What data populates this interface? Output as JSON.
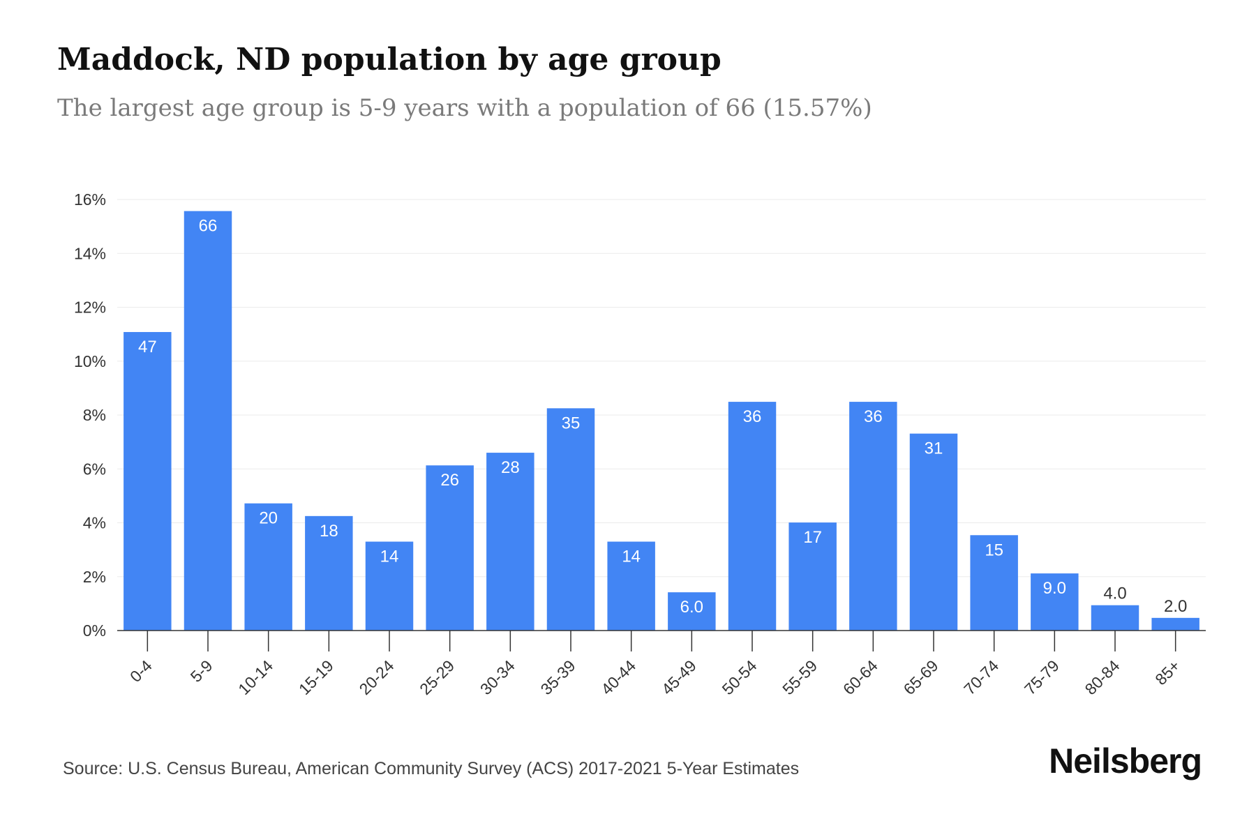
{
  "header": {
    "title": "Maddock, ND population by age group",
    "subtitle": "The largest age group is 5-9 years with a population of 66 (15.57%)"
  },
  "footer": {
    "source": "Source: U.S. Census Bureau, American Community Survey (ACS) 2017-2021 5-Year Estimates",
    "brand": "Neilsberg"
  },
  "colors": {
    "bar": "#4285f4",
    "grid": "#ebebeb",
    "axis": "#333333",
    "label_inside": "#ffffff",
    "label_outside": "#333333"
  },
  "chart_data": {
    "type": "bar",
    "title": "Maddock, ND population by age group",
    "subtitle": "The largest age group is 5-9 years with a population of 66 (15.57%)",
    "xlabel": "",
    "ylabel": "",
    "ylim": [
      0,
      16
    ],
    "yticks": [
      0,
      2,
      4,
      6,
      8,
      10,
      12,
      14,
      16
    ],
    "ytick_labels": [
      "0%",
      "2%",
      "4%",
      "6%",
      "8%",
      "10%",
      "12%",
      "14%",
      "16%"
    ],
    "grid": "horizontal",
    "categories": [
      "0-4",
      "5-9",
      "10-14",
      "15-19",
      "20-24",
      "25-29",
      "30-34",
      "35-39",
      "40-44",
      "45-49",
      "50-54",
      "55-59",
      "60-64",
      "65-69",
      "70-74",
      "75-79",
      "80-84",
      "85+"
    ],
    "values": [
      11.08,
      15.57,
      4.72,
      4.25,
      3.3,
      6.13,
      6.6,
      8.25,
      3.3,
      1.42,
      8.49,
      4.01,
      8.49,
      7.31,
      3.54,
      2.12,
      0.94,
      0.47
    ],
    "data_labels": [
      "47",
      "66",
      "20",
      "18",
      "14",
      "26",
      "28",
      "35",
      "14",
      "6.0",
      "36",
      "17",
      "36",
      "31",
      "15",
      "9.0",
      "4.0",
      "2.0"
    ]
  }
}
